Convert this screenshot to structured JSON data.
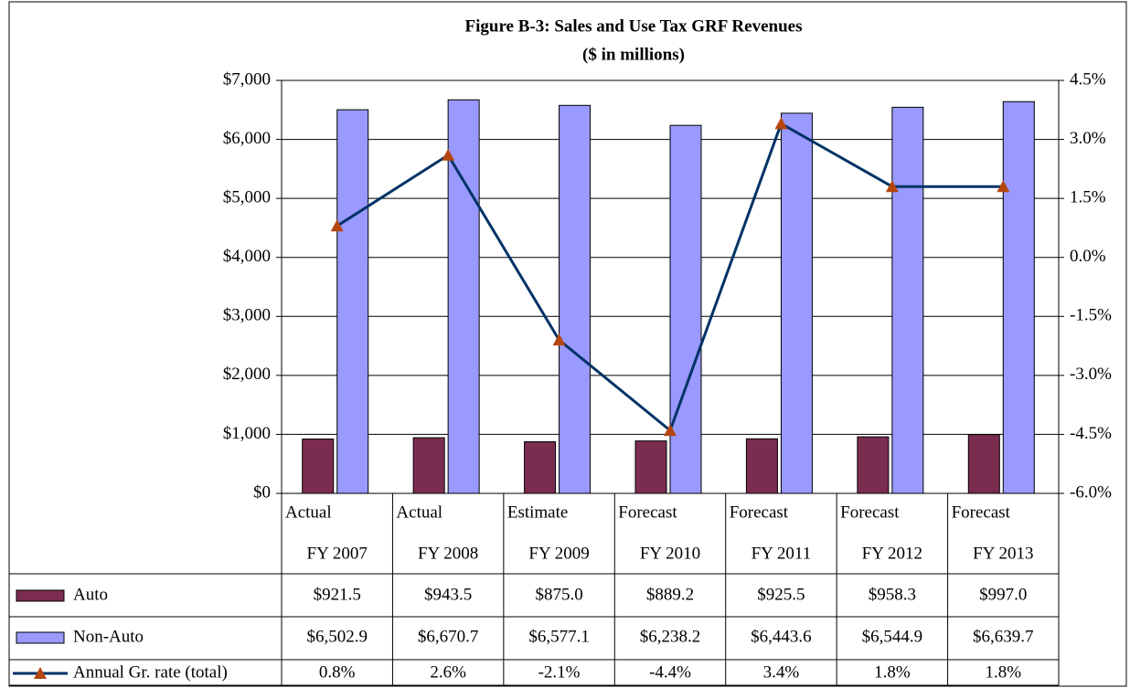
{
  "chart_data": {
    "type": "bar",
    "title": "Figure B-3: Sales and Use Tax GRF Revenues",
    "subtitle": "($ in millions)",
    "categories": [
      [
        "Actual",
        "FY 2007"
      ],
      [
        "Actual",
        "FY 2008"
      ],
      [
        "Estimate",
        "FY 2009"
      ],
      [
        "Forecast",
        "FY 2010"
      ],
      [
        "Forecast",
        "FY 2011"
      ],
      [
        "Forecast",
        "FY 2012"
      ],
      [
        "Forecast",
        "FY 2013"
      ]
    ],
    "series": [
      {
        "name": "Auto",
        "type": "bar",
        "color": "#7b2d50",
        "values": [
          921.5,
          943.5,
          875.0,
          889.2,
          925.5,
          958.3,
          997.0
        ],
        "value_labels": [
          "$921.5",
          "$943.5",
          "$875.0",
          "$889.2",
          "$925.5",
          "$958.3",
          "$997.0"
        ]
      },
      {
        "name": "Non-Auto",
        "type": "bar",
        "color": "#9999ff",
        "values": [
          6502.9,
          6670.7,
          6577.1,
          6238.2,
          6443.6,
          6544.9,
          6639.7
        ],
        "value_labels": [
          "$6,502.9",
          "$6,670.7",
          "$6,577.1",
          "$6,238.2",
          "$6,443.6",
          "$6,544.9",
          "$6,639.7"
        ]
      },
      {
        "name": "Annual Gr. rate (total)",
        "type": "line",
        "axis": "y2",
        "color": "#003366",
        "marker_color": "#b5460f",
        "values": [
          0.8,
          2.6,
          -2.1,
          -4.4,
          3.4,
          1.8,
          1.8
        ],
        "value_labels": [
          "0.8%",
          "2.6%",
          "-2.1%",
          "-4.4%",
          "3.4%",
          "1.8%",
          "1.8%"
        ]
      }
    ],
    "ylim": [
      0,
      7000
    ],
    "yticks": [
      {
        "value": 0,
        "label": "$0"
      },
      {
        "value": 1000,
        "label": "$1,000"
      },
      {
        "value": 2000,
        "label": "$2,000"
      },
      {
        "value": 3000,
        "label": "$3,000"
      },
      {
        "value": 4000,
        "label": "$4,000"
      },
      {
        "value": 5000,
        "label": "$5,000"
      },
      {
        "value": 6000,
        "label": "$6,000"
      },
      {
        "value": 7000,
        "label": "$7,000"
      }
    ],
    "y2lim": [
      -6,
      4.5
    ],
    "y2ticks": [
      {
        "value": -6,
        "label": "-6.0%"
      },
      {
        "value": -4.5,
        "label": "-4.5%"
      },
      {
        "value": -3,
        "label": "-3.0%"
      },
      {
        "value": -1.5,
        "label": "-1.5%"
      },
      {
        "value": 0,
        "label": "0.0%"
      },
      {
        "value": 1.5,
        "label": "1.5%"
      },
      {
        "value": 3,
        "label": "3.0%"
      },
      {
        "value": 4.5,
        "label": "4.5%"
      }
    ],
    "grid": true
  }
}
